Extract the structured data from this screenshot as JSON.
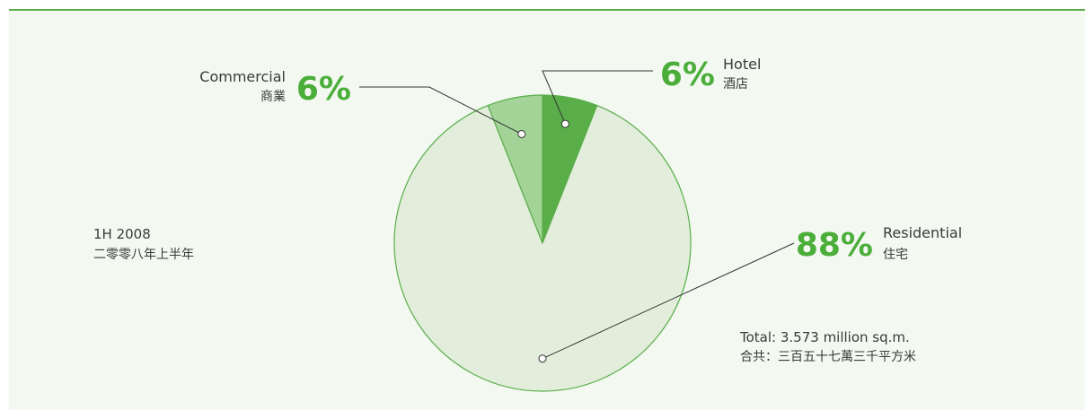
{
  "period": {
    "en": "1H 2008",
    "zh": "二零零八年上半年"
  },
  "total": {
    "en": "Total: 3.573 million sq.m.",
    "zh": "合共：三百五十七萬三千平方米"
  },
  "colors": {
    "accent": "#5aae4a",
    "panel": "#f3f8f1",
    "percent_text": "#4cae3a"
  },
  "chart_data": {
    "type": "pie",
    "unit": "%",
    "slices": [
      {
        "en": "Hotel",
        "zh": "酒店",
        "value": 6,
        "label": "6%",
        "color": "#5aae4a"
      },
      {
        "en": "Residential",
        "zh": "住宅",
        "value": 88,
        "label": "88%",
        "color": "#e2eedb"
      },
      {
        "en": "Commercial",
        "zh": "商業",
        "value": 6,
        "label": "6%",
        "color": "#a3d397"
      }
    ]
  }
}
